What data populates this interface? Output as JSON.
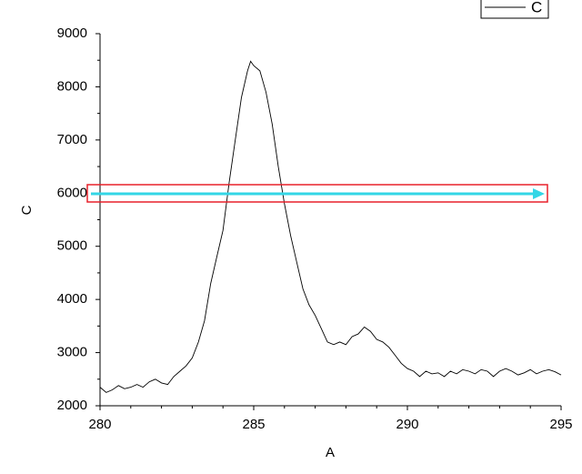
{
  "chart_data": {
    "type": "line",
    "x_label": "A",
    "y_label": "C",
    "x": [
      280,
      280.2,
      280.4,
      280.6,
      280.8,
      281,
      281.2,
      281.4,
      281.6,
      281.8,
      282,
      282.2,
      282.4,
      282.6,
      282.8,
      283,
      283.2,
      283.4,
      283.6,
      283.8,
      284,
      284.2,
      284.4,
      284.6,
      284.8,
      284.9,
      285,
      285.2,
      285.4,
      285.6,
      285.8,
      286,
      286.2,
      286.4,
      286.6,
      286.8,
      287,
      287.2,
      287.4,
      287.6,
      287.8,
      288,
      288.2,
      288.4,
      288.6,
      288.8,
      289,
      289.2,
      289.4,
      289.6,
      289.8,
      290,
      290.2,
      290.4,
      290.6,
      290.8,
      291,
      291.2,
      291.4,
      291.6,
      291.8,
      292,
      292.2,
      292.4,
      292.6,
      292.8,
      293,
      293.2,
      293.4,
      293.6,
      293.8,
      294,
      294.2,
      294.4,
      294.6,
      294.8,
      295
    ],
    "series": [
      {
        "name": "C",
        "color": "#000000",
        "values": [
          2350,
          2250,
          2300,
          2380,
          2320,
          2350,
          2400,
          2350,
          2450,
          2500,
          2430,
          2400,
          2550,
          2650,
          2750,
          2900,
          3200,
          3600,
          4300,
          4800,
          5300,
          6200,
          7000,
          7800,
          8300,
          8480,
          8400,
          8300,
          7900,
          7300,
          6500,
          5800,
          5200,
          4700,
          4200,
          3900,
          3700,
          3450,
          3200,
          3150,
          3200,
          3150,
          3300,
          3350,
          3480,
          3400,
          3250,
          3200,
          3100,
          2950,
          2800,
          2700,
          2650,
          2550,
          2650,
          2600,
          2620,
          2550,
          2650,
          2600,
          2680,
          2650,
          2600,
          2680,
          2650,
          2550,
          2650,
          2700,
          2650,
          2580,
          2620,
          2680,
          2600,
          2650,
          2680,
          2640,
          2580
        ]
      }
    ],
    "xlim": [
      280,
      295
    ],
    "xticks": [
      280,
      285,
      290,
      295
    ],
    "ylim": [
      2000,
      9000
    ],
    "yticks": [
      2000,
      3000,
      4000,
      5000,
      6000,
      7000,
      8000,
      9000
    ],
    "legend": "upper right"
  }
}
